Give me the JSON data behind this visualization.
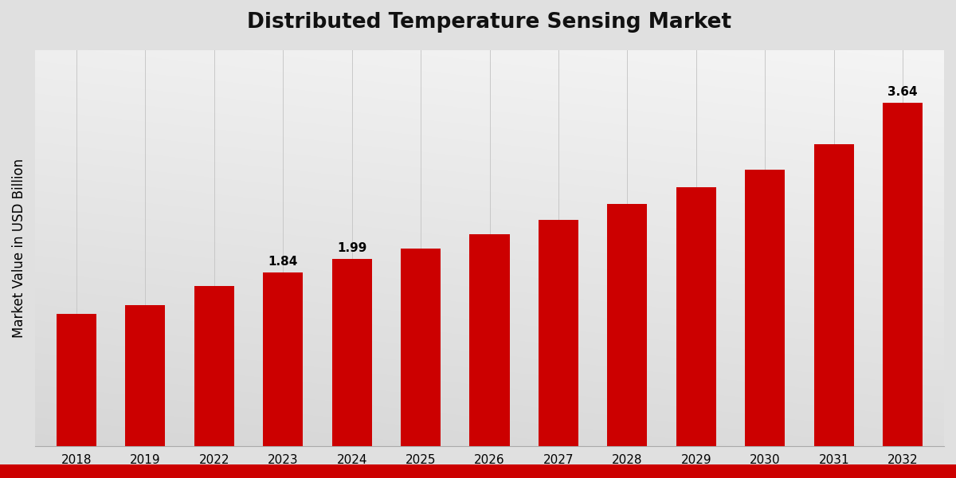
{
  "title": "Distributed Temperature Sensing Market",
  "ylabel": "Market Value in USD Billion",
  "bar_color": "#cc0000",
  "categories": [
    "2018",
    "2019",
    "2022",
    "2023",
    "2024",
    "2025",
    "2026",
    "2027",
    "2028",
    "2029",
    "2030",
    "2031",
    "2032"
  ],
  "values": [
    1.4,
    1.5,
    1.7,
    1.84,
    1.99,
    2.1,
    2.25,
    2.4,
    2.57,
    2.75,
    2.93,
    3.2,
    3.64
  ],
  "labeled_bars": {
    "2023": "1.84",
    "2024": "1.99",
    "2032": "3.64"
  },
  "ylim": [
    0,
    4.2
  ],
  "title_fontsize": 19,
  "label_fontsize": 11,
  "tick_fontsize": 11,
  "ylabel_fontsize": 12,
  "grid_color": "#c8c8c8",
  "title_color": "#111111",
  "bottom_stripe_color": "#cc0000",
  "bg_light": "#f0f0f0",
  "bg_dark": "#d0d0d0"
}
